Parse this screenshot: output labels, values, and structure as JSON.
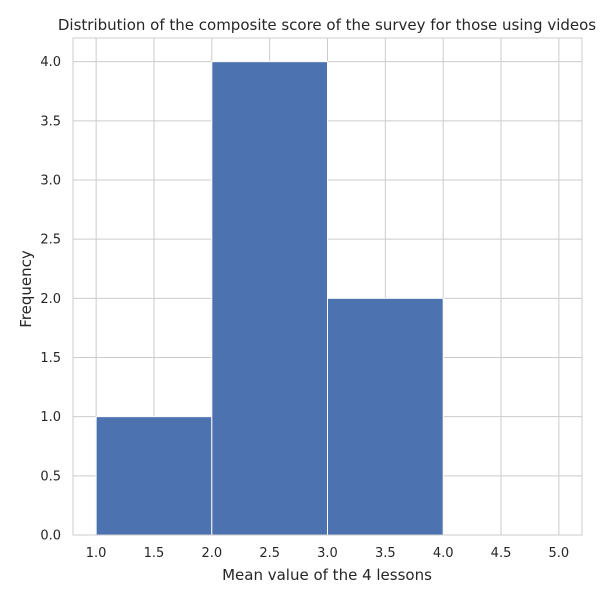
{
  "chart_data": {
    "type": "bar",
    "title": "Distribution of the composite score of the survey for those using videos",
    "xlabel": "Mean value of the 4 lessons",
    "ylabel": "Frequency",
    "bins": [
      {
        "start": 1.0,
        "end": 2.0,
        "value": 1
      },
      {
        "start": 2.0,
        "end": 3.0,
        "value": 4
      },
      {
        "start": 3.0,
        "end": 4.0,
        "value": 2
      }
    ],
    "xlim": [
      0.8,
      5.2
    ],
    "ylim": [
      0,
      4.2
    ],
    "xticks": [
      "1.0",
      "1.5",
      "2.0",
      "2.5",
      "3.0",
      "3.5",
      "4.0",
      "4.5",
      "5.0"
    ],
    "yticks": [
      "0.0",
      "0.5",
      "1.0",
      "1.5",
      "2.0",
      "2.5",
      "3.0",
      "3.5",
      "4.0"
    ],
    "grid": true,
    "bar_color": "#4c72b0",
    "grid_color": "#cccccc"
  }
}
